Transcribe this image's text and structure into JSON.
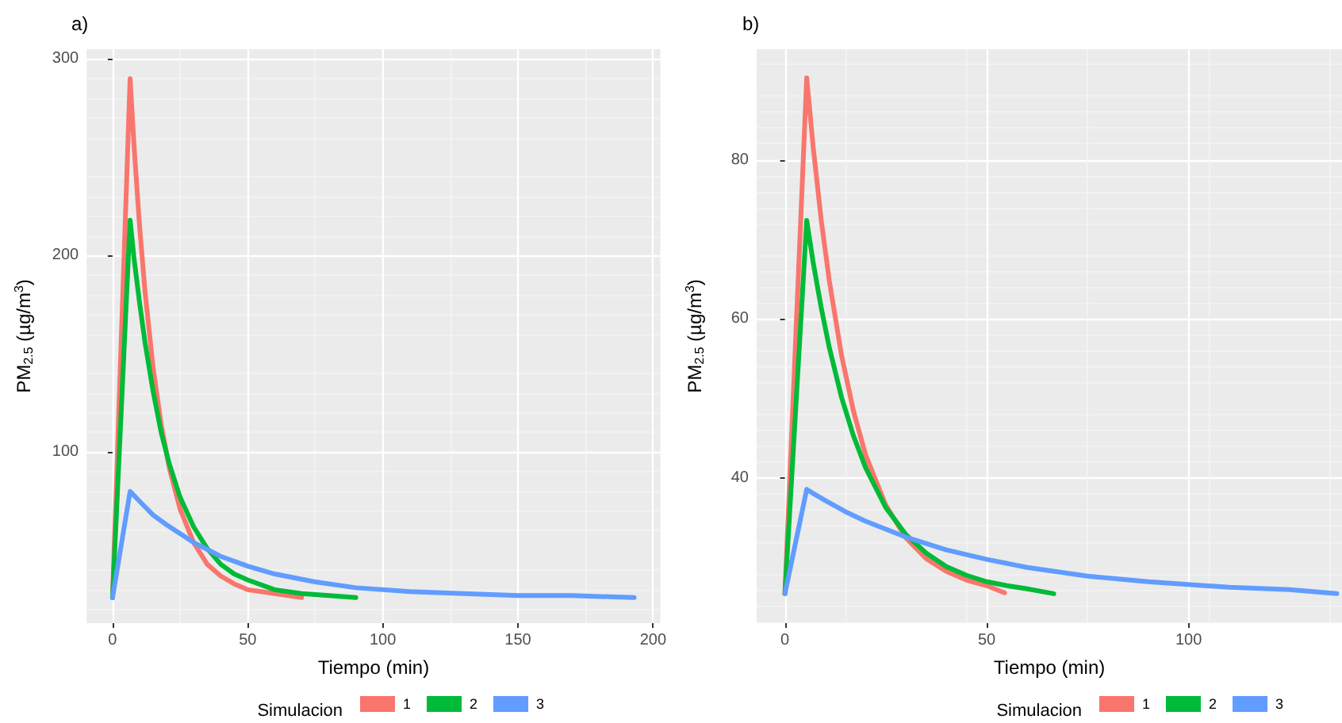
{
  "chart_data": [
    {
      "type": "line",
      "title": "a)",
      "xlabel": "Tiempo (min)",
      "ylabel": "PM$_{2.5}$ (µg/m$^{3}$)",
      "legend_title": "Simulacion",
      "legend": "bottom",
      "grid": true,
      "marker": "none",
      "line_style": "solid",
      "xlim": [
        -9.6,
        202.7
      ],
      "xticks": [
        0,
        50,
        100,
        150,
        200
      ],
      "ylim": [
        13,
        305
      ],
      "yticks": [
        100,
        200,
        300
      ],
      "series": [
        {
          "name": "1",
          "color": "#f8766d",
          "x": [
            0,
            6.5,
            8,
            10,
            12,
            15,
            18,
            21,
            25,
            30,
            35,
            40,
            45,
            50,
            55,
            60,
            70
          ],
          "values": [
            26,
            290,
            255,
            215,
            182,
            143,
            114,
            92,
            71,
            54,
            43,
            37,
            33,
            30,
            29,
            28,
            26
          ]
        },
        {
          "name": "2",
          "color": "#00ba38",
          "x": [
            0,
            6.5,
            8,
            10,
            12,
            15,
            18,
            21,
            25,
            30,
            35,
            40,
            45,
            50,
            60,
            70,
            80,
            90
          ],
          "values": [
            26,
            218,
            198,
            176,
            156,
            131,
            110,
            94,
            77,
            62,
            51,
            43,
            38,
            35,
            30,
            28,
            27,
            26
          ]
        },
        {
          "name": "3",
          "color": "#619cff",
          "x": [
            0,
            6.5,
            10,
            15,
            20,
            30,
            40,
            50,
            60,
            75,
            90,
            110,
            130,
            150,
            170,
            193
          ],
          "values": [
            26,
            80,
            75,
            68,
            63,
            54,
            47,
            42,
            38,
            34,
            31,
            29,
            28,
            27,
            27,
            26
          ]
        }
      ]
    },
    {
      "type": "line",
      "title": "b)",
      "xlabel": "Tiempo (min)",
      "ylabel": "PM$_{2.5}$ (µg/m$^{3}$)",
      "legend_title": "Simulacion",
      "legend": "bottom",
      "grid": true,
      "marker": "none",
      "line_style": "solid",
      "xlim": [
        -7,
        138
      ],
      "xticks": [
        0,
        50,
        100
      ],
      "ylim": [
        21.8,
        93.9
      ],
      "yticks": [
        40,
        60,
        80
      ],
      "series": [
        {
          "name": "1",
          "color": "#f8766d",
          "x": [
            0,
            5.4,
            7,
            9,
            11,
            14,
            17,
            20,
            25,
            30,
            35,
            40,
            45,
            50,
            54.4
          ],
          "values": [
            25.5,
            90.3,
            81.6,
            72.4,
            64.8,
            55.5,
            48.4,
            42.9,
            36.6,
            32.5,
            29.9,
            28.3,
            27.2,
            26.5,
            25.6
          ]
        },
        {
          "name": "2",
          "color": "#00ba38",
          "x": [
            0,
            5.4,
            7,
            9,
            11,
            14,
            17,
            20,
            25,
            30,
            35,
            40,
            45,
            50,
            55,
            60,
            66.6
          ],
          "values": [
            25.5,
            72.4,
            67.1,
            61.4,
            56.4,
            50.2,
            45.3,
            41.3,
            36.3,
            32.9,
            30.6,
            28.9,
            27.8,
            27.0,
            26.5,
            26.1,
            25.5
          ]
        },
        {
          "name": "3",
          "color": "#619cff",
          "x": [
            0,
            5.4,
            7,
            10,
            15,
            20,
            30,
            40,
            50,
            60,
            75,
            90,
            110,
            125,
            136.7
          ],
          "values": [
            25.5,
            38.6,
            38.1,
            37.2,
            35.8,
            34.6,
            32.6,
            31.0,
            29.8,
            28.8,
            27.7,
            27.0,
            26.3,
            26.0,
            25.5
          ]
        }
      ]
    }
  ]
}
